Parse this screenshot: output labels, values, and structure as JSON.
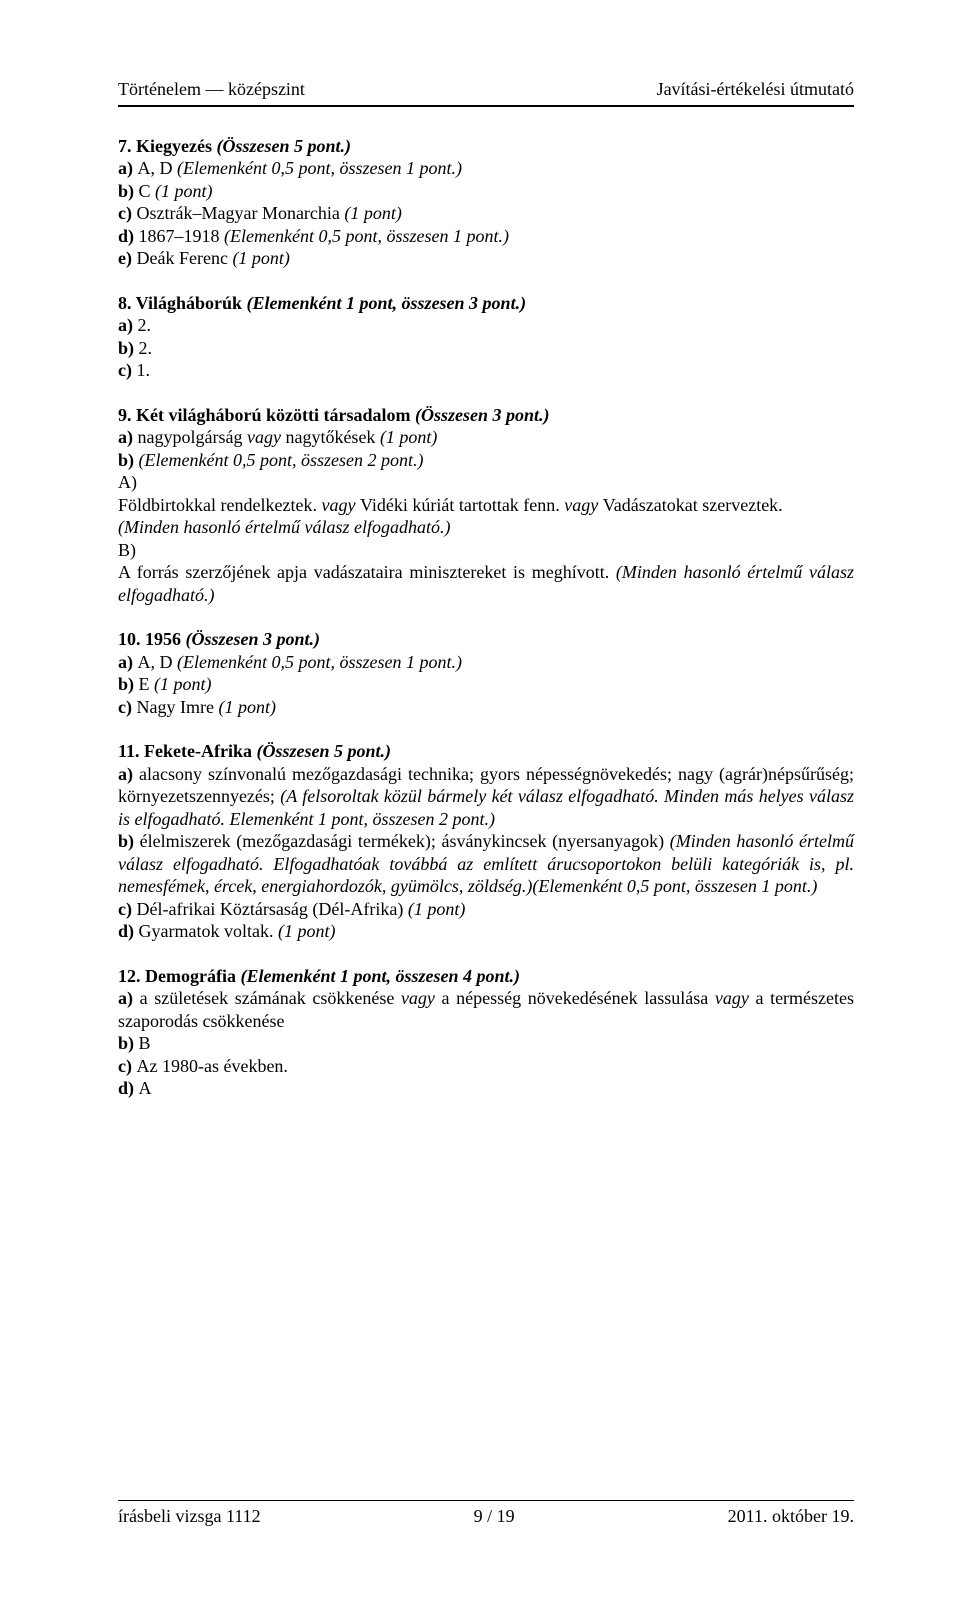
{
  "header": {
    "left": "Történelem — középszint",
    "right": "Javítási-értékelési útmutató"
  },
  "q7": {
    "title_a": "7. Kiegyezés ",
    "title_b": "(Összesen 5 pont.)",
    "a_a": "a) ",
    "a_b": "A, D ",
    "a_c": "(Elemenként 0,5 pont, összesen 1 pont.)",
    "b_a": "b) ",
    "b_b": "C ",
    "b_c": "(1 pont)",
    "c_a": "c) ",
    "c_b": "Osztrák–Magyar Monarchia ",
    "c_c": "(1 pont)",
    "d_a": "d) ",
    "d_b": "1867–1918 ",
    "d_c": "(Elemenként 0,5 pont, összesen 1 pont.)",
    "e_a": "e) ",
    "e_b": "Deák Ferenc ",
    "e_c": "(1 pont)"
  },
  "q8": {
    "title_a": "8. Világháborúk ",
    "title_b": "(Elemenként 1 pont, összesen 3 pont.)",
    "a": "a) ",
    "a_v": "2.",
    "b": "b) ",
    "b_v": "2.",
    "c": "c) ",
    "c_v": "1."
  },
  "q9": {
    "title_a": "9. Két világháború közötti társadalom ",
    "title_b": "(Összesen 3 pont.)",
    "a_a": "a) ",
    "a_b": "nagypolgárság ",
    "a_c": "vagy ",
    "a_d": "nagytőkések ",
    "a_e": "(1 pont)",
    "b_a": "b) ",
    "b_b": "(Elemenként 0,5 pont, összesen 2 pont.)",
    "A": "A)",
    "A1a": "Földbirtokkal rendelkeztek. ",
    "A1b": "vagy ",
    "A1c": "Vidéki kúriát tartottak fenn. ",
    "A1d": "vagy ",
    "A1e": "Vadászatokat szerveztek.",
    "A2": "(Minden hasonló értelmű válasz elfogadható.)",
    "B": "B)",
    "B1a": "A forrás szerzőjének apja vadászataira minisztereket is meghívott. ",
    "B1b": "(Minden hasonló értelmű válasz elfogadható.)"
  },
  "q10": {
    "title_a": "10. 1956 ",
    "title_b": "(Összesen 3 pont.)",
    "a_a": "a) ",
    "a_b": "A, D ",
    "a_c": "(Elemenként 0,5 pont, összesen 1 pont.)",
    "b_a": "b) ",
    "b_b": "E ",
    "b_c": "(1 pont)",
    "c_a": "c) ",
    "c_b": "Nagy Imre ",
    "c_c": "(1 pont)"
  },
  "q11": {
    "title_a": "11. Fekete-Afrika ",
    "title_b": "(Összesen 5 pont.)",
    "a_a": "a) ",
    "a_b": "alacsony színvonalú mezőgazdasági technika; gyors népességnövekedés; nagy (agrár)népsűrűség; környezetszennyezés; ",
    "a_c": "(A felsoroltak közül bármely két válasz elfogadható. Minden más helyes válasz is elfogadható. Elemenként 1 pont, összesen 2 pont.)",
    "b_a": "b) ",
    "b_b": "élelmiszerek (mezőgazdasági termékek); ásványkincsek (nyersanyagok) ",
    "b_c": "(Minden hasonló értelmű válasz elfogadható. Elfogadhatóak továbbá az említett árucsoportokon belüli kategóriák is, pl. nemesfémek, ércek, energiahordozók, gyümölcs, zöldség.)(Elemenként 0,5 pont, összesen 1 pont.)",
    "c_a": "c) ",
    "c_b": "Dél-afrikai Köztársaság (Dél-Afrika) ",
    "c_c": "(1 pont)",
    "d_a": "d) ",
    "d_b": "Gyarmatok voltak. ",
    "d_c": "(1 pont)"
  },
  "q12": {
    "title_a": "12. Demográfia ",
    "title_b": "(Elemenként 1 pont, összesen 4 pont.)",
    "a_a": "a) ",
    "a_b": "a születések számának csökkenése ",
    "a_c": "vagy ",
    "a_d": "a népesség növekedésének lassulása ",
    "a_e": "vagy ",
    "a_f": "a természetes szaporodás csökkenése",
    "b_a": "b) ",
    "b_b": "B",
    "c_a": "c) ",
    "c_b": "Az 1980-as években.",
    "d_a": "d) ",
    "d_b": "A"
  },
  "footer": {
    "left": "írásbeli vizsga 1112",
    "center": "9 / 19",
    "right": "2011. október 19."
  }
}
